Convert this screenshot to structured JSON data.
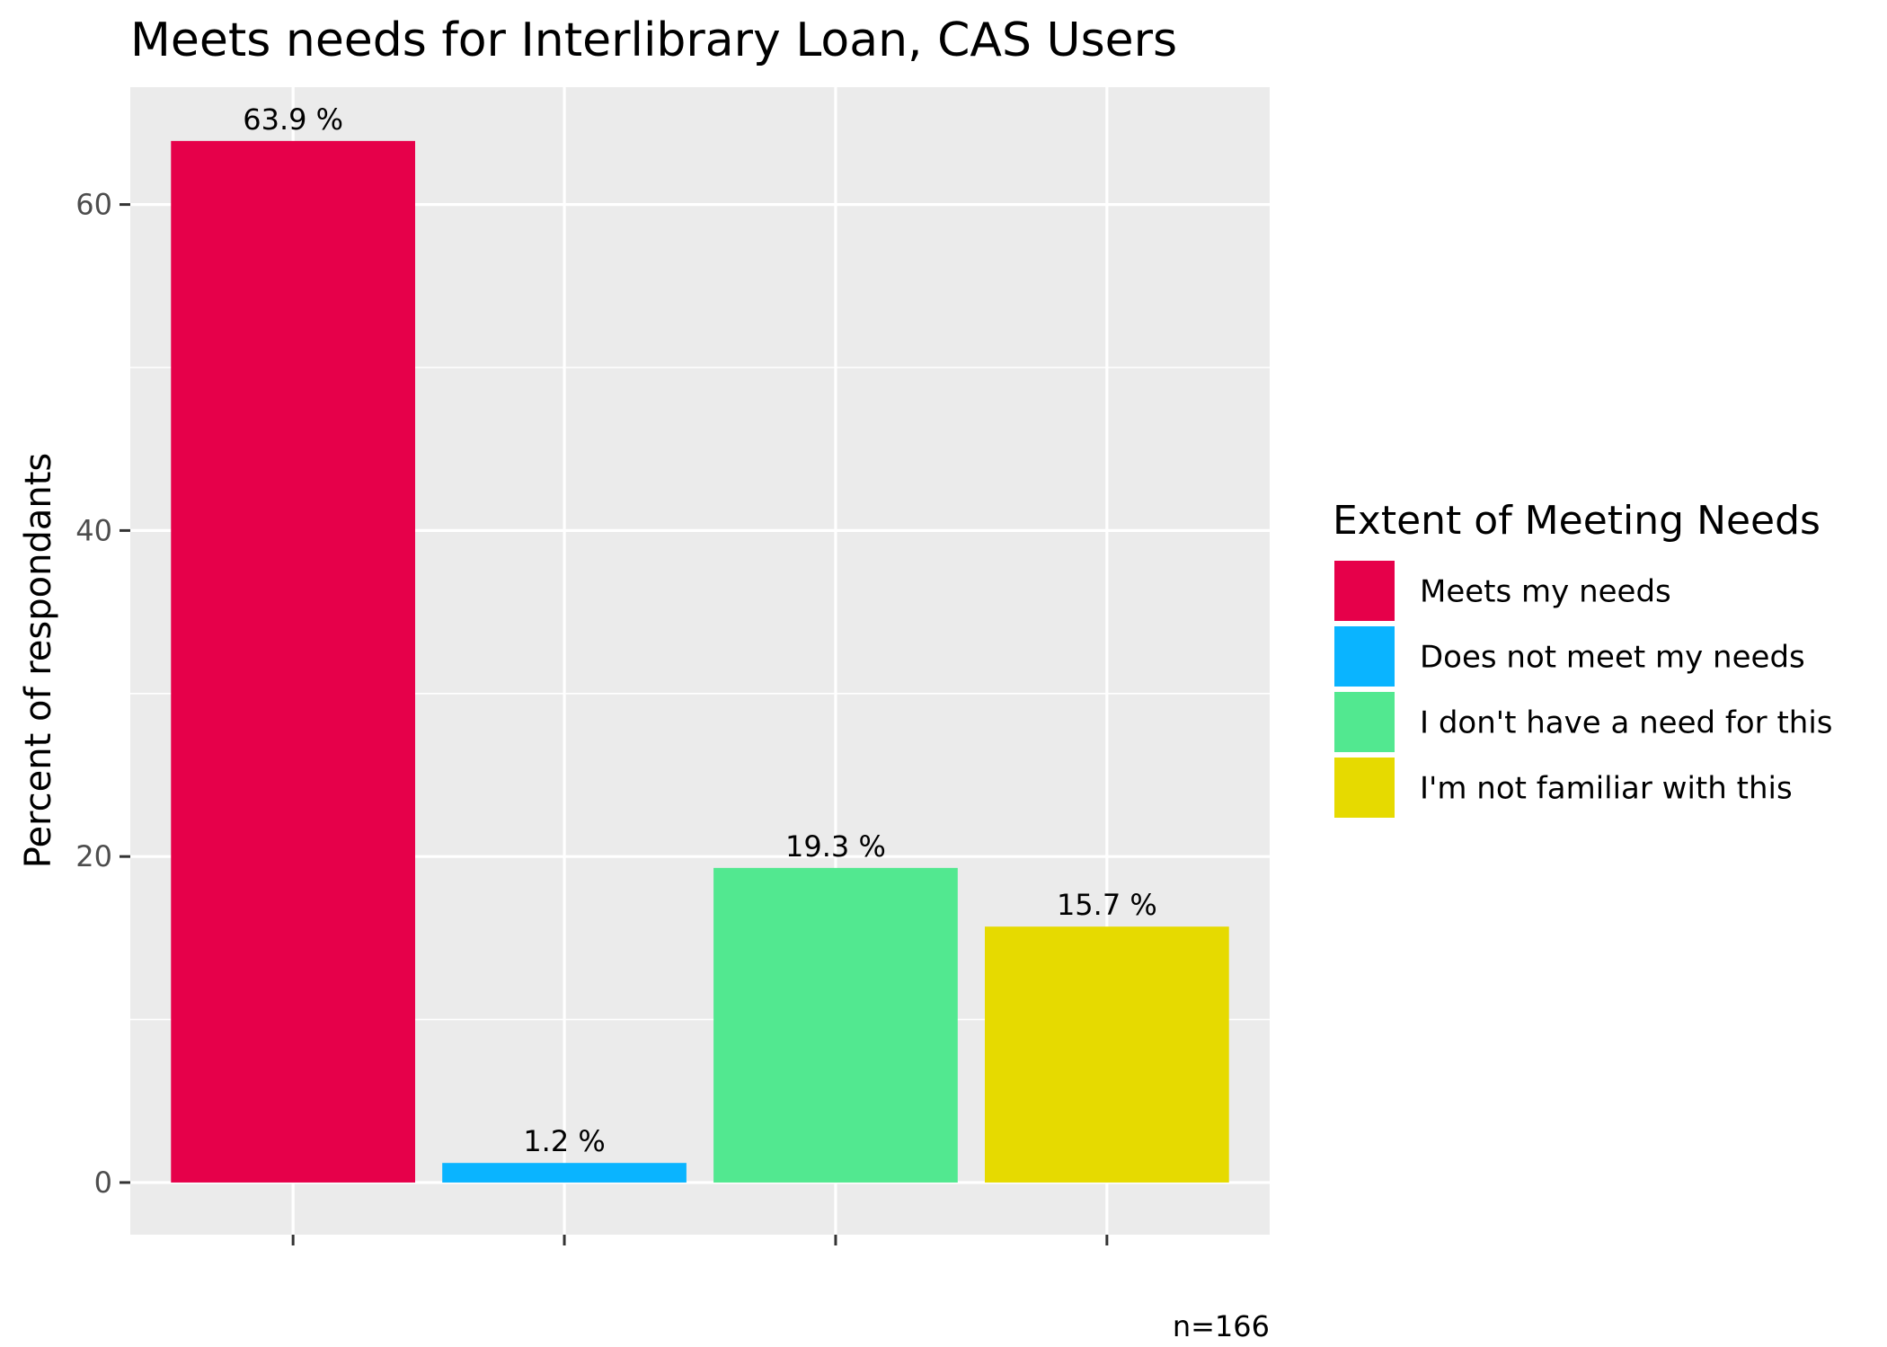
{
  "chart_data": {
    "type": "bar",
    "title": "Meets needs for Interlibrary Loan, CAS Users",
    "xlabel": "",
    "ylabel": "Percent of respondants",
    "ylim": [
      -3.2,
      67.2
    ],
    "yticks": [
      0,
      20,
      40,
      60
    ],
    "grid": true,
    "legend_title": "Extent of Meeting Needs",
    "legend_position": "right",
    "caption": "n=166",
    "categories": [
      "Meets my needs",
      "Does not meet my needs",
      "I don't have a need for this",
      "I'm not familiar with this"
    ],
    "values": [
      63.9,
      1.2,
      19.3,
      15.7
    ],
    "labels": [
      "63.9 %",
      "1.2 %",
      "19.3 %",
      "15.7 %"
    ],
    "colors": [
      "#E6004A",
      "#0AB4FF",
      "#52E890",
      "#E6DA00"
    ]
  }
}
